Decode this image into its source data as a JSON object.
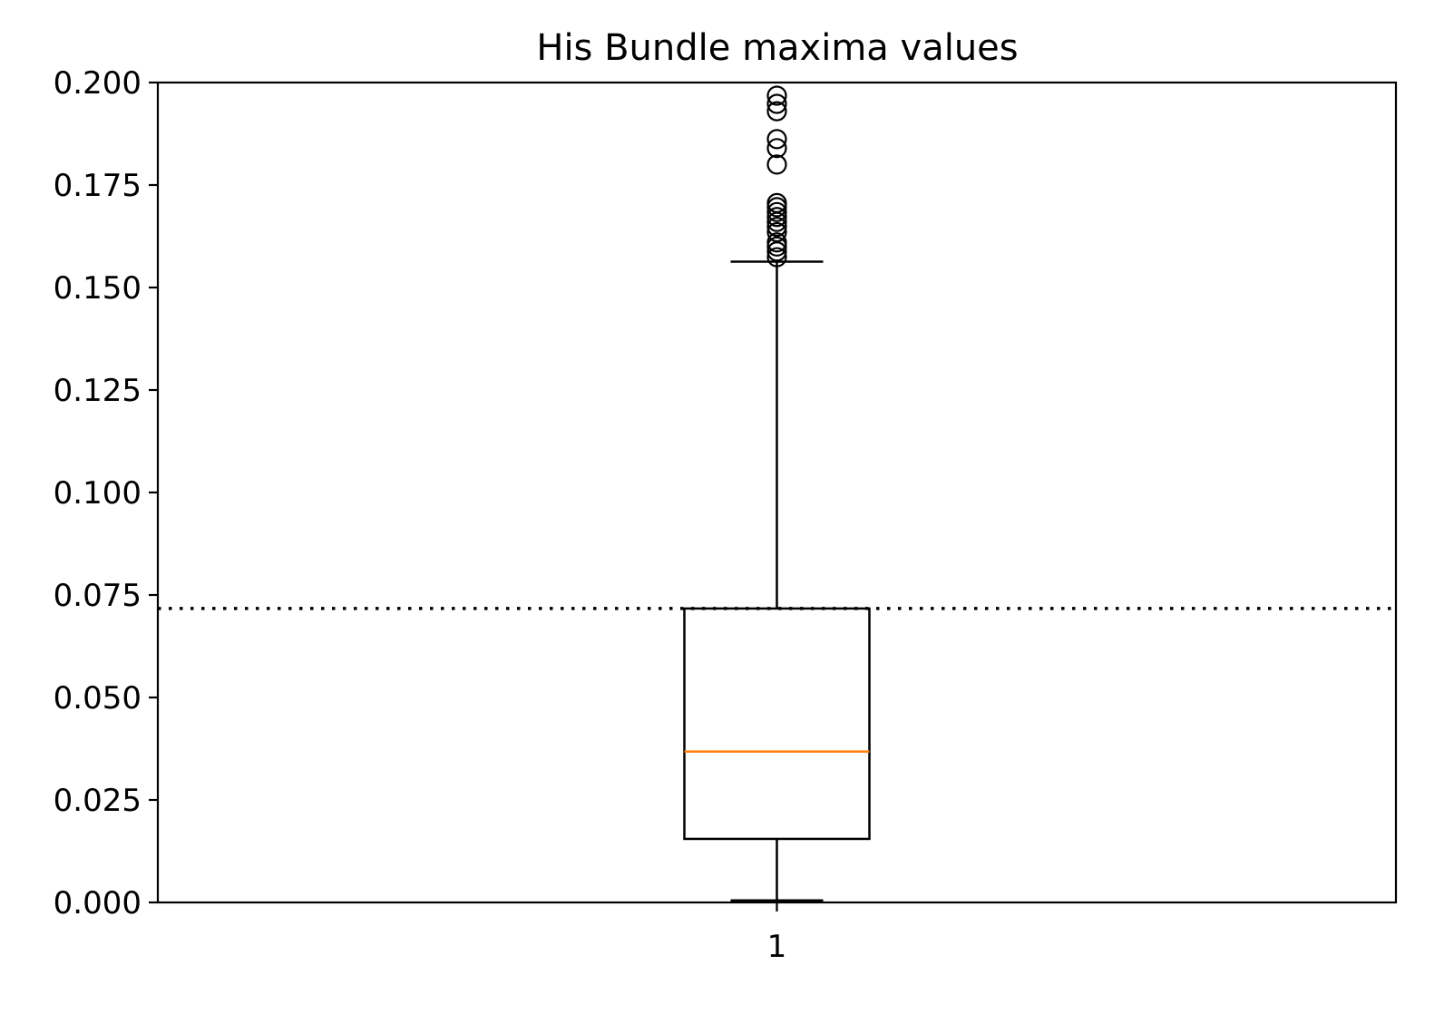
{
  "chart_data": {
    "type": "box",
    "title": "His Bundle maxima values",
    "xlabel": "",
    "ylabel": "",
    "categories": [
      "1"
    ],
    "ylim": [
      0,
      0.2
    ],
    "yticks": [
      "0.000",
      "0.025",
      "0.050",
      "0.075",
      "0.100",
      "0.125",
      "0.150",
      "0.175",
      "0.200"
    ],
    "grid": false,
    "boxes": [
      {
        "category": "1",
        "whisker_low": 0.0005,
        "q1": 0.0155,
        "median": 0.0368,
        "q3": 0.0717,
        "whisker_high": 0.1563,
        "outliers": [
          0.1574,
          0.1588,
          0.16,
          0.161,
          0.1635,
          0.1648,
          0.166,
          0.1672,
          0.1684,
          0.1696,
          0.1706,
          0.18,
          0.184,
          0.1862,
          0.193,
          0.1948,
          0.1968
        ]
      }
    ],
    "reference_line": {
      "y": 0.0717,
      "style": "dotted",
      "color": "#000000"
    },
    "colors": {
      "box": "#000000",
      "median": "#ff7f0e",
      "outlier": "#000000",
      "axes": "#000000"
    }
  }
}
